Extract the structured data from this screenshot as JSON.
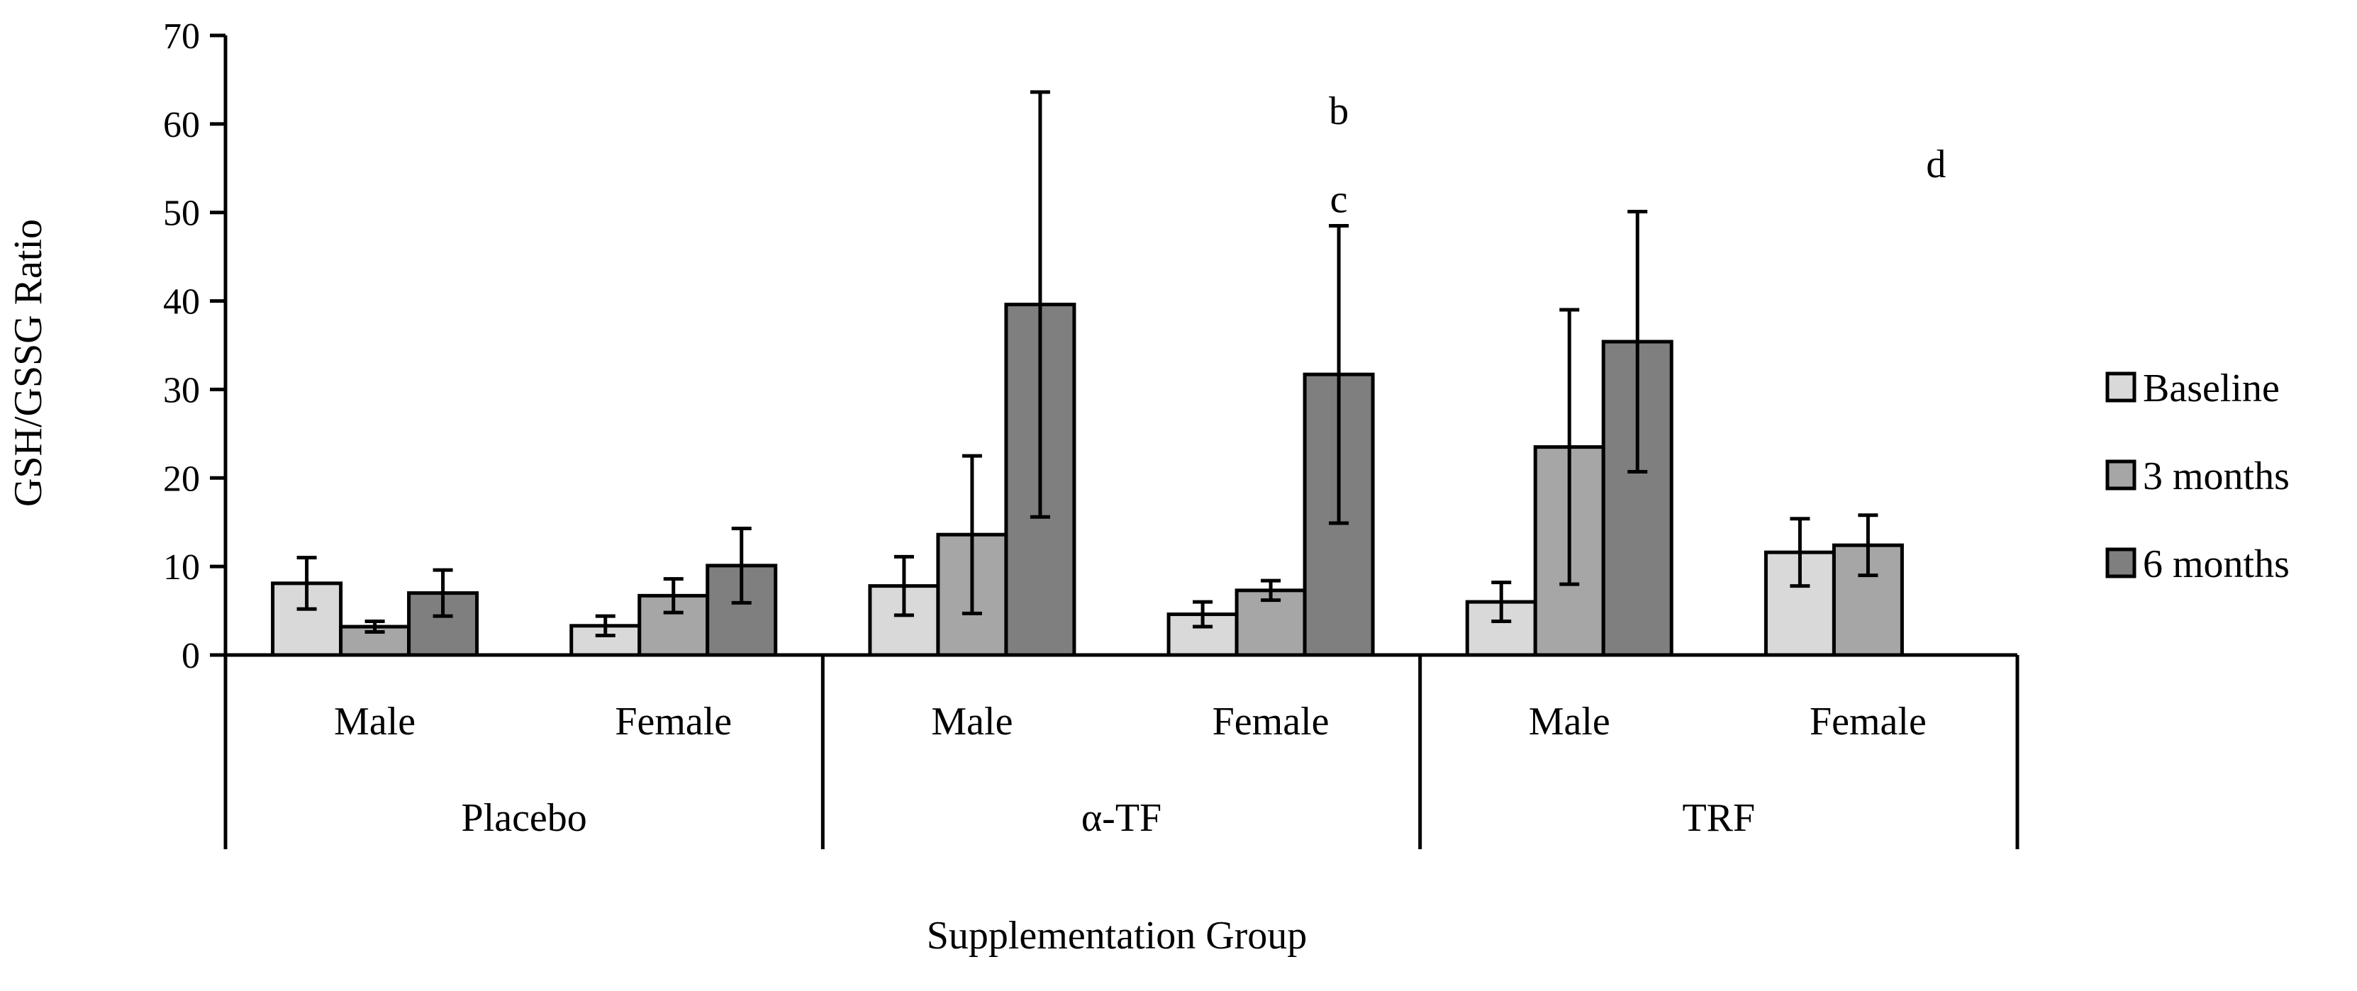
{
  "chart_data": {
    "type": "bar",
    "title": "",
    "ylabel": "GSH/GSSG Ratio",
    "xlabel": "Supplementation Group",
    "ylim": [
      0,
      70
    ],
    "yticks": [
      0,
      10,
      20,
      30,
      40,
      50,
      60,
      70
    ],
    "grid": false,
    "legend_position": "right",
    "groups": [
      {
        "label": "Placebo",
        "subcategories": [
          "Male",
          "Female"
        ]
      },
      {
        "label": "α-TF",
        "subcategories": [
          "Male",
          "Female"
        ]
      },
      {
        "label": "TRF",
        "subcategories": [
          "Male",
          "Female"
        ]
      }
    ],
    "categories": [
      "Male",
      "Female",
      "Male",
      "Female",
      "Male",
      "Female"
    ],
    "series": [
      {
        "name": "Baseline",
        "color": "#d9d9d9",
        "values": [
          8.1,
          3.3,
          7.8,
          4.6,
          6.0,
          11.6
        ],
        "errors": [
          2.9,
          1.1,
          3.3,
          1.4,
          2.2,
          3.8
        ]
      },
      {
        "name": "3 months",
        "color": "#a6a6a6",
        "values": [
          3.2,
          6.7,
          13.6,
          7.3,
          23.5,
          12.4
        ],
        "errors": [
          0.6,
          1.9,
          8.9,
          1.1,
          15.5,
          3.4
        ]
      },
      {
        "name": "6 months",
        "color": "#7f7f7f",
        "values": [
          7.0,
          10.1,
          39.6,
          31.7,
          35.4,
          null
        ],
        "errors": [
          2.6,
          4.2,
          24.0,
          16.8,
          14.7,
          null
        ]
      }
    ],
    "annotations": [
      {
        "text": "b",
        "category_index": 3,
        "series": "6 months",
        "value": 60
      },
      {
        "text": "c",
        "category_index": 3,
        "series": "6 months",
        "value": 50
      },
      {
        "text": "d",
        "category_index": 5,
        "series": "6 months",
        "value": 54
      }
    ]
  }
}
